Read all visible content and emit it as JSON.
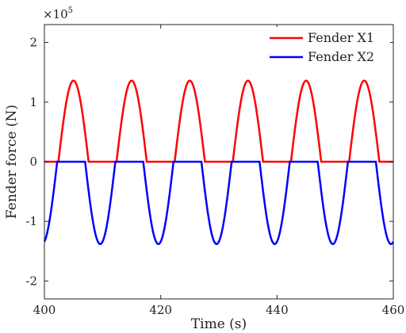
{
  "chart_data": {
    "type": "line",
    "xlabel": "Time (s)",
    "ylabel": "Fender force (N)",
    "y_multiplier": {
      "base": "×10",
      "exponent": "5"
    },
    "xlim": [
      400,
      460
    ],
    "ylim": [
      -2.3,
      2.3
    ],
    "x_ticks": [
      400,
      420,
      440,
      460
    ],
    "x_tick_labels": [
      "400",
      "420",
      "440",
      "460"
    ],
    "y_ticks": [
      -2,
      -1,
      0,
      1,
      2
    ],
    "y_tick_labels": [
      "-2",
      "-1",
      "0",
      "1",
      "2"
    ],
    "grid": false,
    "legend_position": "top-right",
    "series": [
      {
        "name": "Fender X1",
        "color": "#ff0000",
        "period": 10,
        "amplitude": 1.36,
        "peak_times": [
          405,
          415,
          425,
          435,
          445,
          455
        ],
        "nonzero_half_width": 2.6,
        "sample_points": [
          {
            "x": 400,
            "y": 0
          },
          {
            "x": 402.4,
            "y": 0
          },
          {
            "x": 403.0,
            "y": 0.67
          },
          {
            "x": 405,
            "y": 1.36
          },
          {
            "x": 407.0,
            "y": 0.67
          },
          {
            "x": 407.6,
            "y": 0
          },
          {
            "x": 412.4,
            "y": 0
          },
          {
            "x": 415,
            "y": 1.36
          },
          {
            "x": 417.6,
            "y": 0
          },
          {
            "x": 422.4,
            "y": 0
          },
          {
            "x": 425,
            "y": 1.36
          },
          {
            "x": 427.6,
            "y": 0
          },
          {
            "x": 432.4,
            "y": 0
          },
          {
            "x": 435,
            "y": 1.36
          },
          {
            "x": 437.6,
            "y": 0
          },
          {
            "x": 442.4,
            "y": 0
          },
          {
            "x": 445,
            "y": 1.36
          },
          {
            "x": 447.6,
            "y": 0
          },
          {
            "x": 452.4,
            "y": 0
          },
          {
            "x": 455,
            "y": 1.36
          },
          {
            "x": 457.6,
            "y": 0
          },
          {
            "x": 460,
            "y": 0
          }
        ]
      },
      {
        "name": "Fender X2",
        "color": "#0000ff",
        "period": 10,
        "amplitude": -1.38,
        "peak_times": [
          399.6,
          409.6,
          419.6,
          429.6,
          439.6,
          449.6,
          459.6
        ],
        "nonzero_half_width": 2.6,
        "sample_points": [
          {
            "x": 400,
            "y": -1.3
          },
          {
            "x": 402.2,
            "y": 0
          },
          {
            "x": 407.0,
            "y": 0
          },
          {
            "x": 409.6,
            "y": -1.38
          },
          {
            "x": 412.2,
            "y": 0
          },
          {
            "x": 417.0,
            "y": 0
          },
          {
            "x": 419.6,
            "y": -1.38
          },
          {
            "x": 422.2,
            "y": 0
          },
          {
            "x": 427.0,
            "y": 0
          },
          {
            "x": 429.6,
            "y": -1.38
          },
          {
            "x": 432.2,
            "y": 0
          },
          {
            "x": 437.0,
            "y": 0
          },
          {
            "x": 439.6,
            "y": -1.38
          },
          {
            "x": 442.2,
            "y": 0
          },
          {
            "x": 447.0,
            "y": 0
          },
          {
            "x": 449.6,
            "y": -1.38
          },
          {
            "x": 452.2,
            "y": 0
          },
          {
            "x": 457.0,
            "y": 0
          },
          {
            "x": 459.6,
            "y": -1.38
          },
          {
            "x": 460,
            "y": -1.32
          }
        ]
      }
    ]
  }
}
